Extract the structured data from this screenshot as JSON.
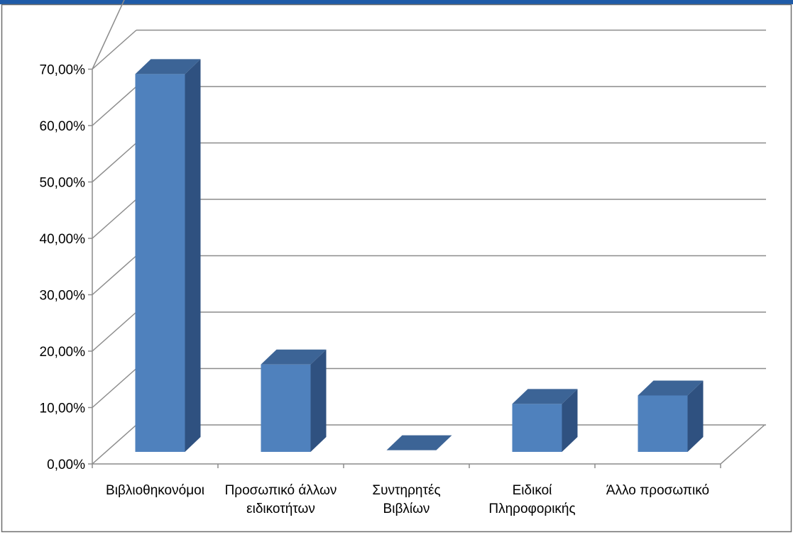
{
  "chart_data": {
    "type": "bar",
    "title": "",
    "xlabel": "",
    "ylabel": "",
    "categories": [
      [
        "Βιβλιοθηκονόμοι"
      ],
      [
        "Προσωπικό άλλων",
        "ειδικοτήτων"
      ],
      [
        "Συντηρητές",
        "Βιβλίων"
      ],
      [
        "Ειδικοί",
        "Πληροφορικής"
      ],
      [
        "Άλλο προσωπικό"
      ]
    ],
    "values": [
      67.0,
      15.5,
      0.3,
      8.5,
      10.0
    ],
    "ylim": [
      0,
      70
    ],
    "yticks": [
      0,
      10,
      20,
      30,
      40,
      50,
      60,
      70
    ],
    "ytick_labels": [
      "0,00%",
      "10,00%",
      "20,00%",
      "30,00%",
      "40,00%",
      "50,00%",
      "60,00%",
      "70,00%"
    ],
    "grid": true,
    "legend": "none",
    "style": "3d-column",
    "colors": {
      "bar_front": "#4F81BD",
      "bar_top": "#3C6496",
      "bar_side": "#2F5180",
      "gridline": "#8C8C8C",
      "border": "#6E6E6E",
      "header_band": "#1F5BA8"
    }
  }
}
